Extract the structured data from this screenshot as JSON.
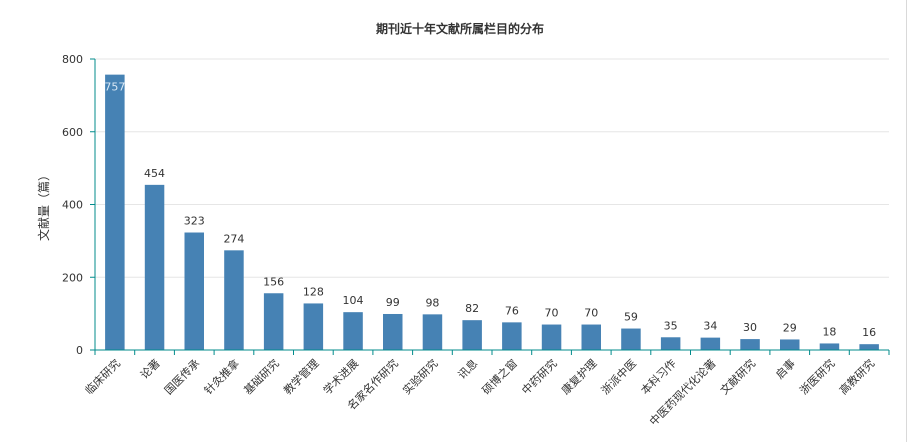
{
  "chart_data": {
    "type": "bar",
    "title": "期刊近十年文献所属栏目的分布",
    "xlabel": "",
    "ylabel": "文献量（篇）",
    "ylim": [
      0,
      800
    ],
    "yticks": [
      0,
      200,
      400,
      600,
      800
    ],
    "grid": true,
    "legend": "none",
    "categories": [
      "临床研究",
      "论著",
      "国医传承",
      "针灸推拿",
      "基础研究",
      "教学管理",
      "学术进展",
      "名家名作研究",
      "实验研究",
      "讯息",
      "硕博之窗",
      "中药研究",
      "康复护理",
      "浙派中医",
      "本科习作",
      "中医药现代化论著",
      "文献研究",
      "启事",
      "浙医研究",
      "高教研究"
    ],
    "series": [
      {
        "values": [
          757,
          454,
          323,
          274,
          156,
          128,
          104,
          99,
          98,
          82,
          76,
          70,
          70,
          59,
          35,
          34,
          30,
          29,
          18,
          16
        ]
      }
    ],
    "colors": {
      "bar": "#4682b4",
      "axis": "#008b8b",
      "grid": "#e6e6e6",
      "text": "#333333"
    }
  }
}
